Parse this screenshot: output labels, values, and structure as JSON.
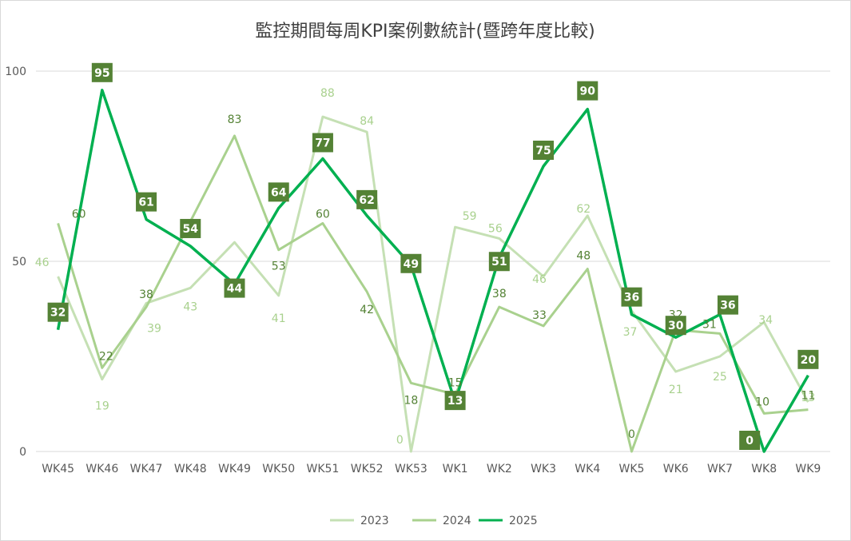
{
  "chart_data": {
    "type": "line",
    "title": "監控期間每周KPI案例數統計(暨跨年度比較)",
    "categories": [
      "WK45",
      "WK46",
      "WK47",
      "WK48",
      "WK49",
      "WK50",
      "WK51",
      "WK52",
      "WK53",
      "WK1",
      "WK2",
      "WK3",
      "WK4",
      "WK5",
      "WK6",
      "WK7",
      "WK8",
      "WK9"
    ],
    "ylim": [
      0,
      100
    ],
    "yticks": [
      0,
      50,
      100
    ],
    "grid": true,
    "legend_position": "bottom",
    "series": [
      {
        "name": "2023",
        "color": "#c5e0b4",
        "label_style": "plain",
        "values": [
          46,
          19,
          39,
          43,
          55,
          41,
          88,
          84,
          0,
          59,
          56,
          46,
          62,
          37,
          21,
          25,
          34,
          13
        ],
        "labels": {
          "0": "46",
          "1": "19",
          "2": "39",
          "3": "43",
          "5": "41",
          "6": "88",
          "7": "84",
          "8": "0",
          "9": "59",
          "10": "56",
          "11": "46",
          "12": "62",
          "13": "37",
          "14": "21",
          "15": "25",
          "16": "34",
          "17": "13"
        }
      },
      {
        "name": "2024",
        "color": "#a9d18e",
        "label_style": "plain",
        "values": [
          60,
          22,
          38,
          null,
          83,
          53,
          60,
          42,
          18,
          15,
          38,
          33,
          48,
          0,
          32,
          31,
          10,
          11
        ],
        "labels": {
          "0": "60",
          "1": "22",
          "2": "38",
          "4": "83",
          "5": "53",
          "6": "60",
          "7": "42",
          "8": "18",
          "9": "15",
          "10": "38",
          "11": "33",
          "12": "48",
          "13": "0",
          "14": "32",
          "15": "31",
          "16": "10",
          "17": "11"
        }
      },
      {
        "name": "2025",
        "color": "#00b050",
        "label_style": "boxed",
        "values": [
          32,
          95,
          61,
          54,
          44,
          64,
          77,
          62,
          49,
          13,
          51,
          75,
          90,
          36,
          30,
          36,
          0,
          20
        ],
        "labels": {
          "0": "32",
          "1": "95",
          "2": "61",
          "3": "54",
          "4": "44",
          "5": "64",
          "6": "77",
          "7": "62",
          "8": "49",
          "9": "13",
          "10": "51",
          "11": "75",
          "12": "90",
          "13": "36",
          "14": "30",
          "15": "36",
          "16": "0",
          "17": "20"
        }
      }
    ]
  }
}
